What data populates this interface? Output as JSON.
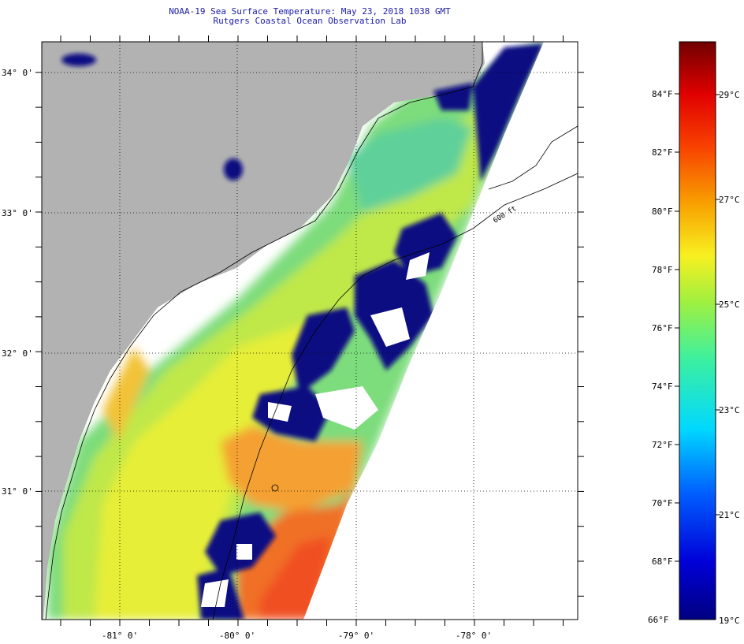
{
  "header": {
    "line1": "NOAA-19 Sea Surface Temperature:  May 23, 2018 1038 GMT",
    "line2": "Rutgers Coastal Ocean Observation Lab"
  },
  "map": {
    "lat_labels": [
      {
        "label": "34° 0'",
        "value": 34.0
      },
      {
        "label": "33° 0'",
        "value": 33.0
      },
      {
        "label": "32° 0'",
        "value": 32.0
      },
      {
        "label": "31° 0'",
        "value": 31.0
      }
    ],
    "lon_labels": [
      {
        "label": "-81° 0'",
        "value": -81.0
      },
      {
        "label": "-80° 0'",
        "value": -80.0
      },
      {
        "label": "-79° 0'",
        "value": -79.0
      },
      {
        "label": "-78° 0'",
        "value": -78.0
      }
    ],
    "isobath_label": "600 ft",
    "colors": {
      "land": "#b2b2b2",
      "no_data": "#ffffff",
      "cloud": "#0a0a82"
    }
  },
  "colorbar": {
    "fahrenheit_labels": [
      "84°F",
      "82°F",
      "80°F",
      "78°F",
      "76°F",
      "74°F",
      "72°F",
      "70°F",
      "68°F",
      "66°F"
    ],
    "celsius_labels": [
      "29°C",
      "27°C",
      "25°C",
      "23°C",
      "21°C",
      "19°C"
    ],
    "range_f": [
      66,
      86
    ]
  }
}
